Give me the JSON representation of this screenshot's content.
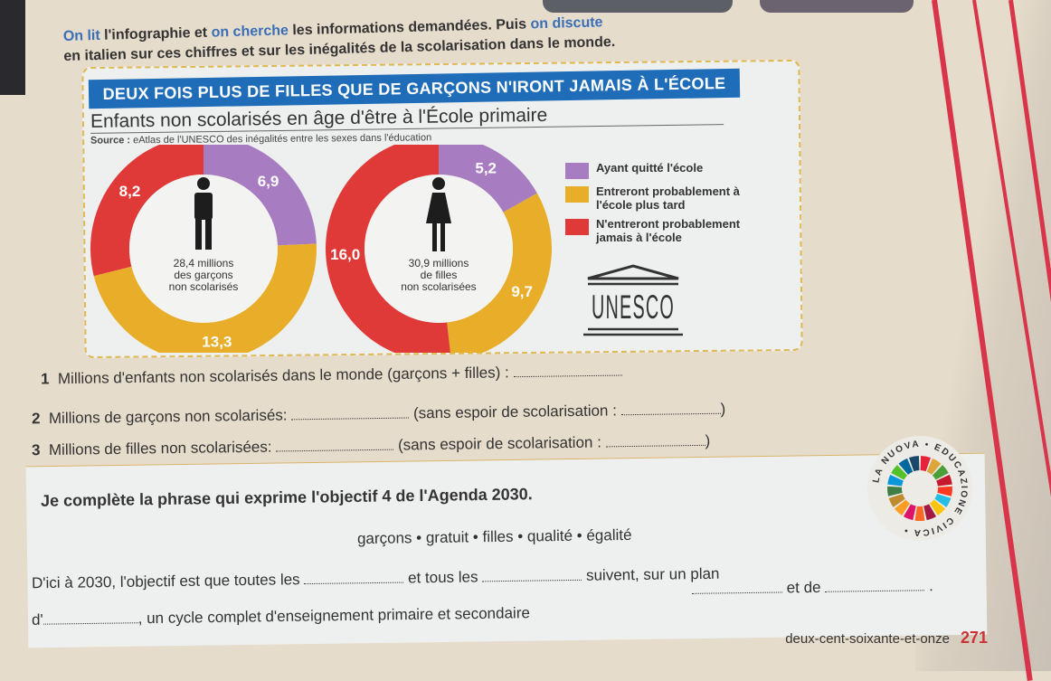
{
  "intro": {
    "line1_parts": [
      "On lit",
      " l'infographie et ",
      "on cherche",
      " les informations demandées. Puis ",
      "on discute"
    ],
    "line2": "en italien sur ces chiffres et sur les inégalités de la scolarisation dans le monde."
  },
  "infographic": {
    "banner": "DEUX FOIS PLUS DE FILLES QUE DE GARÇONS N'IRONT JAMAIS À L'ÉCOLE",
    "title": "Enfants non scolarisés en âge d'être à l'École primaire",
    "source_label": "Source :",
    "source_text": " eAtlas de l'UNESCO des inégalités entre les sexes dans l'éducation",
    "logo_text": "UNESCO",
    "colors": {
      "left": "#a77cc0",
      "later": "#e8ae2a",
      "never": "#e03a38"
    },
    "legend": [
      {
        "key": "left",
        "label": "Ayant quitté l'école"
      },
      {
        "key": "later",
        "label": "Entreront probablement à l'école plus tard"
      },
      {
        "key": "never",
        "label": "N'entreront probablement jamais à l'école"
      }
    ]
  },
  "chart_data": [
    {
      "type": "pie",
      "donut": true,
      "center_lines": [
        "28,4 millions",
        "des garçons",
        "non scolarisés"
      ],
      "icon": "male-figure-icon",
      "categories": [
        "Ayant quitté l'école",
        "Entreront probablement à l'école plus tard",
        "N'entreront probablement jamais à l'école"
      ],
      "values": [
        6.9,
        13.3,
        8.2
      ],
      "labels": [
        "6,9",
        "13,3",
        "8,2"
      ]
    },
    {
      "type": "pie",
      "donut": true,
      "center_lines": [
        "30,9 millions",
        "de filles",
        "non scolarisées"
      ],
      "icon": "female-figure-icon",
      "categories": [
        "Ayant quitté l'école",
        "Entreront probablement à l'école plus tard",
        "N'entreront probablement jamais à l'école"
      ],
      "values": [
        5.2,
        9.7,
        16.0
      ],
      "labels": [
        "5,2",
        "9,7",
        "16,0"
      ]
    }
  ],
  "questions": [
    {
      "num": "1",
      "text": "Millions d'enfants non scolarisés dans le monde (garçons + filles) :",
      "tail": ""
    },
    {
      "num": "2",
      "text": "Millions de garçons non scolarisés:",
      "mid": "(sans espoir de scolarisation :",
      "tail": ")"
    },
    {
      "num": "3",
      "text": "Millions de filles non scolarisées:",
      "mid": "(sans espoir de scolarisation :",
      "tail": ")"
    }
  ],
  "exercise": {
    "heading": "Je complète la phrase qui exprime l'objectif 4 de l'Agenda 2030.",
    "wordbank": "garçons • gratuit • filles • qualité • égalité",
    "line1a": "D'ici à 2030, l'objectif est que toutes les",
    "line1b": "et tous les",
    "line1c": "suivent, sur un plan",
    "line2a": "et de",
    "line3a": "d'",
    "line3b": ", un cycle complet d'enseignement primaire et secondaire",
    "period": "."
  },
  "badge": {
    "logo_text": "LA NUOVA EDUCAZIONE CIVICA"
  },
  "footer": {
    "page_words": "deux-cent-soixante-et-onze",
    "page_number": "271"
  }
}
